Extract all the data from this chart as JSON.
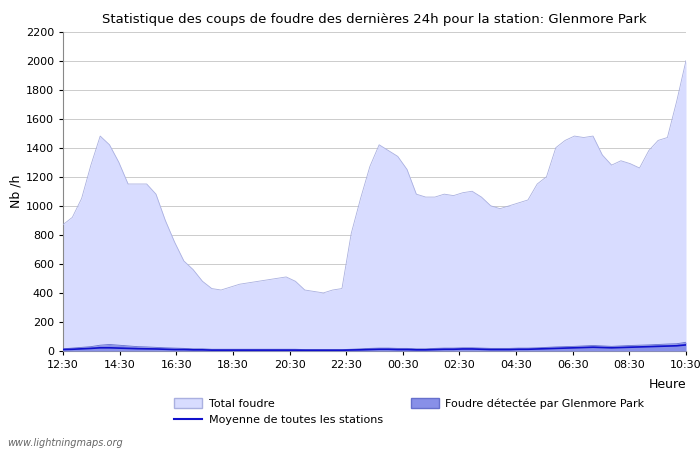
{
  "title": "Statistique des coups de foudre des dernières 24h pour la station: Glenmore Park",
  "ylabel": "Nb /h",
  "xlabel": "Heure",
  "watermark": "www.lightningmaps.org",
  "x_ticks_labels": [
    "12:30",
    "14:30",
    "16:30",
    "18:30",
    "20:30",
    "22:30",
    "00:30",
    "02:30",
    "04:30",
    "06:30",
    "08:30",
    "10:30"
  ],
  "ylim": [
    0,
    2200
  ],
  "yticks": [
    0,
    200,
    400,
    600,
    800,
    1000,
    1200,
    1400,
    1600,
    1800,
    2000,
    2200
  ],
  "background_color": "#ffffff",
  "plot_bg_color": "#ffffff",
  "grid_color": "#cccccc",
  "total_foudre_color": "#d8dcff",
  "total_foudre_edge": "#aab0e0",
  "local_foudre_color": "#8890e8",
  "local_foudre_edge": "#6670cc",
  "moyenne_color": "#1010cc",
  "total_foudre_data": [
    870,
    920,
    1050,
    1280,
    1480,
    1420,
    1300,
    1150,
    1150,
    1150,
    1080,
    900,
    750,
    620,
    560,
    480,
    430,
    420,
    440,
    460,
    470,
    480,
    490,
    500,
    510,
    480,
    420,
    410,
    400,
    420,
    430,
    810,
    1050,
    1270,
    1420,
    1380,
    1340,
    1250,
    1080,
    1060,
    1060,
    1080,
    1070,
    1090,
    1100,
    1060,
    1000,
    980,
    1000,
    1020,
    1040,
    1150,
    1200,
    1400,
    1450,
    1480,
    1470,
    1480,
    1350,
    1280,
    1310,
    1290,
    1260,
    1380,
    1450,
    1470,
    1720,
    2000
  ],
  "local_foudre_data": [
    15,
    20,
    25,
    30,
    40,
    45,
    40,
    35,
    30,
    28,
    25,
    22,
    20,
    18,
    15,
    15,
    12,
    12,
    12,
    12,
    12,
    12,
    12,
    12,
    12,
    12,
    10,
    10,
    10,
    10,
    10,
    12,
    15,
    18,
    20,
    20,
    18,
    18,
    15,
    15,
    18,
    20,
    20,
    22,
    22,
    20,
    18,
    18,
    18,
    20,
    20,
    22,
    25,
    28,
    30,
    32,
    35,
    38,
    35,
    32,
    35,
    38,
    40,
    42,
    45,
    48,
    50,
    60
  ],
  "moyenne_data": [
    10,
    12,
    15,
    18,
    22,
    22,
    20,
    18,
    16,
    15,
    14,
    12,
    10,
    10,
    8,
    8,
    6,
    6,
    6,
    6,
    6,
    6,
    6,
    6,
    6,
    6,
    5,
    5,
    5,
    5,
    5,
    7,
    8,
    10,
    12,
    12,
    10,
    10,
    8,
    8,
    10,
    12,
    12,
    14,
    14,
    12,
    10,
    10,
    10,
    12,
    12,
    14,
    16,
    18,
    20,
    22,
    24,
    26,
    24,
    22,
    24,
    26,
    28,
    30,
    32,
    34,
    36,
    42
  ],
  "legend_total_label": "Total foudre",
  "legend_moyenne_label": "Moyenne de toutes les stations",
  "legend_local_label": "Foudre détectée par Glenmore Park"
}
